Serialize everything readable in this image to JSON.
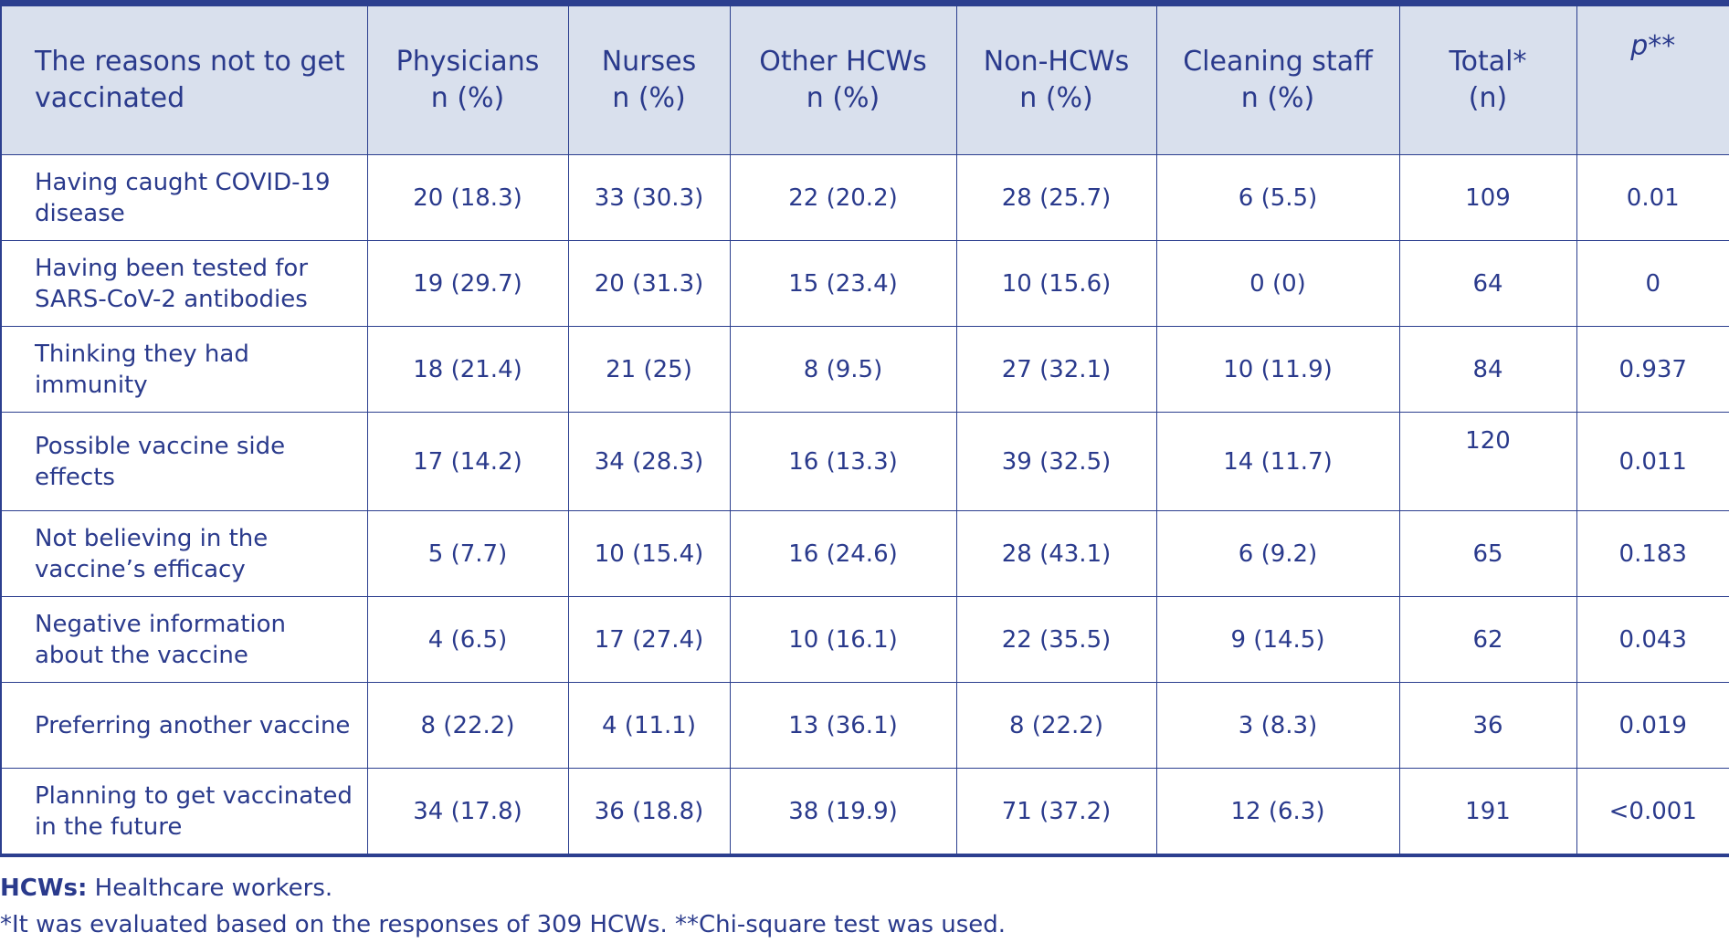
{
  "headers": [
    {
      "line1": "The reasons not to get",
      "line2": "vaccinated"
    },
    {
      "line1": "Physicians",
      "line2": "n (%)"
    },
    {
      "line1": "Nurses",
      "line2": "n (%)"
    },
    {
      "line1": "Other HCWs",
      "line2": "n (%)"
    },
    {
      "line1": "Non-HCWs",
      "line2": "n (%)"
    },
    {
      "line1": "Cleaning staff",
      "line2": "n (%)"
    },
    {
      "line1": "Total*",
      "line2": "(n)"
    },
    {
      "line1": "p**",
      "line2": ""
    }
  ],
  "rows": [
    {
      "reason_l1": "Having caught COVID-19",
      "reason_l2": "disease",
      "physicians": "20 (18.3)",
      "nurses": "33 (30.3)",
      "other_hcws": "22 (20.2)",
      "non_hcws": "28 (25.7)",
      "cleaning": "6 (5.5)",
      "total": "109",
      "p": "0.01"
    },
    {
      "reason_l1": "Having been tested for",
      "reason_l2": "SARS-CoV-2 antibodies",
      "physicians": "19 (29.7)",
      "nurses": "20 (31.3)",
      "other_hcws": "15 (23.4)",
      "non_hcws": "10 (15.6)",
      "cleaning": "0 (0)",
      "total": "64",
      "p": "0"
    },
    {
      "reason_l1": "Thinking they had",
      "reason_l2": "immunity",
      "physicians": "18 (21.4)",
      "nurses": "21 (25)",
      "other_hcws": "8 (9.5)",
      "non_hcws": "27 (32.1)",
      "cleaning": "10 (11.9)",
      "total": "84",
      "p": "0.937"
    },
    {
      "reason_l1": "Possible vaccine side",
      "reason_l2": "effects",
      "physicians": "17 (14.2)",
      "nurses": "34 (28.3)",
      "other_hcws": "16 (13.3)",
      "non_hcws": "39 (32.5)",
      "cleaning": "14 (11.7)",
      "total": "120",
      "p": "0.011"
    },
    {
      "reason_l1": "Not believing in the",
      "reason_l2": "vaccine’s efficacy",
      "physicians": "5 (7.7)",
      "nurses": "10 (15.4)",
      "other_hcws": "16 (24.6)",
      "non_hcws": "28 (43.1)",
      "cleaning": "6 (9.2)",
      "total": "65",
      "p": "0.183"
    },
    {
      "reason_l1": "Negative information",
      "reason_l2": "about the vaccine",
      "physicians": "4 (6.5)",
      "nurses": "17 (27.4)",
      "other_hcws": "10 (16.1)",
      "non_hcws": "22 (35.5)",
      "cleaning": "9 (14.5)",
      "total": "62",
      "p": "0.043"
    },
    {
      "reason_l1": "Preferring another vaccine",
      "reason_l2": "",
      "physicians": "8 (22.2)",
      "nurses": "4 (11.1)",
      "other_hcws": "13 (36.1)",
      "non_hcws": "8 (22.2)",
      "cleaning": "3 (8.3)",
      "total": "36",
      "p": "0.019"
    },
    {
      "reason_l1": "Planning to get vaccinated",
      "reason_l2": "in the future",
      "physicians": "34 (17.8)",
      "nurses": "36 (18.8)",
      "other_hcws": "38 (19.9)",
      "non_hcws": "71 (37.2)",
      "cleaning": "12 (6.3)",
      "total": "191",
      "p": "<0.001"
    }
  ],
  "footer": {
    "abbrev_term": "HCWs:",
    "abbrev_def": " Healthcare workers.",
    "note": "*It was evaluated based on the responses of 309 HCWs. **Chi-square test was used."
  }
}
